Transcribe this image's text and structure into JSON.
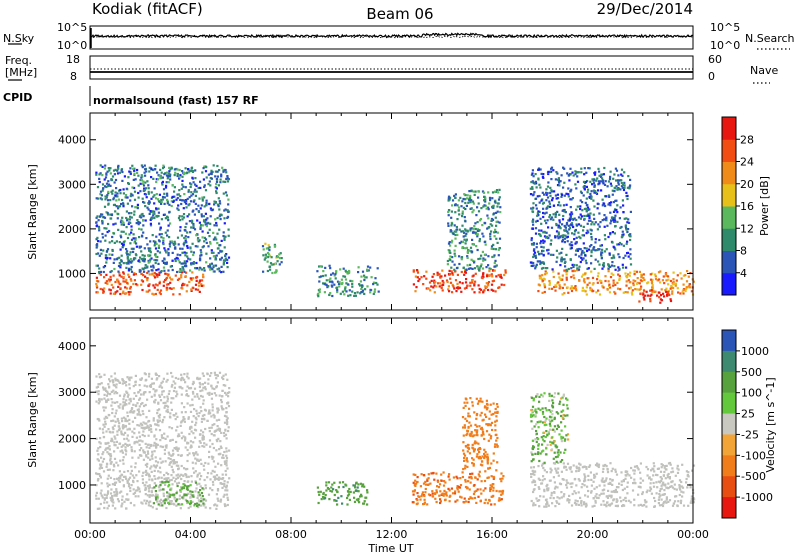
{
  "header": {
    "station": "Kodiak (fitACF)",
    "beam": "Beam 06",
    "date": "29/Dec/2014"
  },
  "strips": {
    "nsky_label": "N.Sky",
    "nsky_ticks": [
      "10^5",
      "10^0"
    ],
    "nsearch_label": "N.Search",
    "nsearch_ticks": [
      "10^5",
      "10^0"
    ],
    "freq_label_1": "Freq.",
    "freq_label_2": "[MHz]",
    "freq_ticks": [
      "18",
      "8"
    ],
    "nave_label": "Nave",
    "nave_ticks": [
      "60",
      "0"
    ],
    "cpid_label": "CPID",
    "cpid_text": "normalsound (fast) 157 RF"
  },
  "colors": {
    "power_scale": [
      "#1a1aff",
      "#2b56b8",
      "#2e8a6a",
      "#5cb85c",
      "#e7c11a",
      "#f08a18",
      "#f24d12",
      "#e8170f"
    ],
    "velocity_scale": [
      "#2b56b8",
      "#3d8a70",
      "#58a23e",
      "#64c83c",
      "#c8c8c0",
      "#f2a436",
      "#f07d1a",
      "#e84d12",
      "#e8170f"
    ],
    "ground_scatter": "#c0c0bc"
  },
  "chart_data": [
    {
      "type": "heatmap",
      "title": "",
      "xlabel": "Time UT",
      "ylabel": "Slant Range [km]",
      "xlim": [
        "00:00",
        "24:00"
      ],
      "ylim": [
        180,
        4600
      ],
      "x_ticks": [
        "00:00",
        "04:00",
        "08:00",
        "12:00",
        "16:00",
        "20:00",
        "00:00"
      ],
      "y_ticks": [
        1000,
        2000,
        3000,
        4000
      ],
      "colorbar": {
        "label": "Power [dB]",
        "ticks": [
          4,
          8,
          12,
          16,
          20,
          24,
          28
        ],
        "range": [
          0,
          32
        ]
      },
      "regions": [
        {
          "t": [
            0.2,
            4.5
          ],
          "r": [
            550,
            1050
          ],
          "power": 26
        },
        {
          "t": [
            0.2,
            5.5
          ],
          "r": [
            1050,
            3450
          ],
          "power": 8
        },
        {
          "t": [
            6.8,
            7.6
          ],
          "r": [
            1000,
            1700
          ],
          "power": 12
        },
        {
          "t": [
            9.0,
            11.5
          ],
          "r": [
            500,
            1200
          ],
          "power": 10
        },
        {
          "t": [
            12.8,
            16.5
          ],
          "r": [
            600,
            1100
          ],
          "power": 27
        },
        {
          "t": [
            14.2,
            16.3
          ],
          "r": [
            1100,
            2900
          ],
          "power": 10
        },
        {
          "t": [
            17.8,
            24.0
          ],
          "r": [
            550,
            1100
          ],
          "power": 22
        },
        {
          "t": [
            17.5,
            21.5
          ],
          "r": [
            1100,
            3400
          ],
          "power": 7
        },
        {
          "t": [
            21.8,
            23.2
          ],
          "r": [
            350,
            650
          ],
          "power": 29
        }
      ]
    },
    {
      "type": "heatmap",
      "title": "",
      "xlabel": "Time UT",
      "ylabel": "Slant Range [km]",
      "xlim": [
        "00:00",
        "24:00"
      ],
      "ylim": [
        180,
        4600
      ],
      "x_ticks": [
        "00:00",
        "04:00",
        "08:00",
        "12:00",
        "16:00",
        "20:00",
        "00:00"
      ],
      "y_ticks": [
        1000,
        2000,
        3000,
        4000
      ],
      "colorbar": {
        "label": "Velocity [m s^-1]",
        "ticks": [
          1000,
          500,
          100,
          25,
          -25,
          -100,
          -500,
          -1000
        ]
      },
      "regions": [
        {
          "t": [
            0.2,
            5.5
          ],
          "r": [
            500,
            1100
          ],
          "velocity": 0,
          "ground_scatter": true
        },
        {
          "t": [
            0.2,
            5.5
          ],
          "r": [
            1100,
            3450
          ],
          "velocity": 0,
          "ground_scatter": true
        },
        {
          "t": [
            2.5,
            4.5
          ],
          "r": [
            550,
            1100
          ],
          "velocity": 150
        },
        {
          "t": [
            9.0,
            11.0
          ],
          "r": [
            600,
            1100
          ],
          "velocity": 400
        },
        {
          "t": [
            12.8,
            16.5
          ],
          "r": [
            600,
            1300
          ],
          "velocity": -400
        },
        {
          "t": [
            14.8,
            16.2
          ],
          "r": [
            1300,
            2900
          ],
          "velocity": -300
        },
        {
          "t": [
            17.5,
            24.0
          ],
          "r": [
            550,
            1500
          ],
          "velocity": 0,
          "ground_scatter": true
        },
        {
          "t": [
            17.5,
            19.0
          ],
          "r": [
            1500,
            3000
          ],
          "velocity": 100
        }
      ]
    }
  ]
}
